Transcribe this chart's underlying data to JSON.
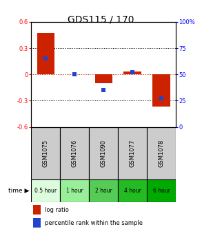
{
  "title": "GDS115 / 170",
  "samples": [
    "GSM1075",
    "GSM1076",
    "GSM1090",
    "GSM1077",
    "GSM1078"
  ],
  "time_labels": [
    "0.5 hour",
    "1 hour",
    "2 hour",
    "4 hour",
    "6 hour"
  ],
  "time_colors": [
    "#ddfcdd",
    "#99ee99",
    "#55cc55",
    "#22bb22",
    "#00aa00"
  ],
  "log_ratios": [
    0.47,
    0.0,
    -0.1,
    0.03,
    -0.37
  ],
  "percentile_ranks": [
    65,
    50,
    35,
    52,
    27
  ],
  "ylim": [
    -0.6,
    0.6
  ],
  "yticks_left": [
    -0.6,
    -0.3,
    0.0,
    0.3,
    0.6
  ],
  "yticks_right": [
    0,
    25,
    50,
    75,
    100
  ],
  "bar_color": "#cc2200",
  "dot_color": "#2244cc",
  "bar_width": 0.6,
  "dot_size": 18,
  "hline_color": "#cc0000",
  "grid_color": "#000000",
  "background_color": "#ffffff",
  "sample_bg_color": "#cccccc",
  "legend_log_label": "log ratio",
  "legend_pct_label": "percentile rank within the sample",
  "title_fontsize": 10,
  "tick_fontsize": 6,
  "sample_fontsize": 6,
  "time_fontsize": 5.5,
  "legend_fontsize": 6
}
